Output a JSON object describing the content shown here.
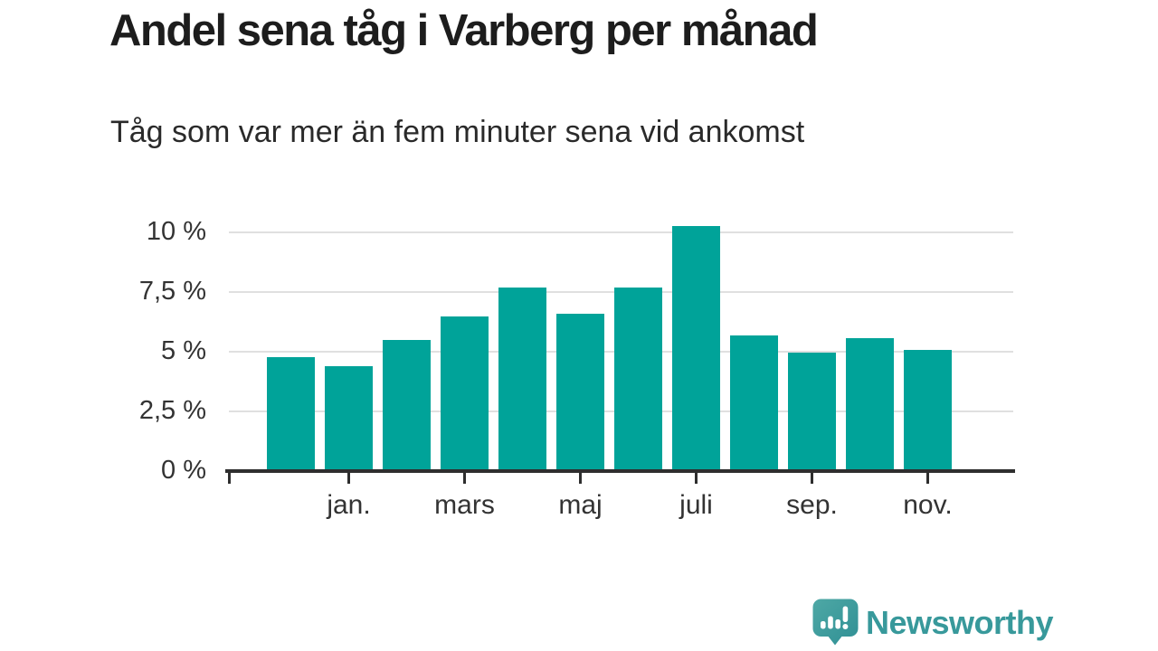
{
  "header": {
    "title": "Andel sena tåg i Varberg per månad",
    "subtitle": "Tåg som var mer än fem minuter sena vid ankomst"
  },
  "chart_data": {
    "type": "bar",
    "title": "Andel sena tåg i Varberg per månad",
    "subtitle": "Tåg som var mer än fem minuter sena vid ankomst",
    "unit": "%",
    "values": [
      4.7,
      4.3,
      5.4,
      6.4,
      7.6,
      6.5,
      7.6,
      10.2,
      5.6,
      4.9,
      5.5,
      5.0
    ],
    "bar_count": 12,
    "x_tick_labels": [
      "jan.",
      "mars",
      "maj",
      "juli",
      "sep.",
      "nov."
    ],
    "x_tick_bar_indexes": [
      1,
      3,
      5,
      7,
      9,
      11
    ],
    "y_ticks": [
      {
        "value": 0,
        "label": "0 %"
      },
      {
        "value": 2.5,
        "label": "2,5 %"
      },
      {
        "value": 5,
        "label": "5 %"
      },
      {
        "value": 7.5,
        "label": "7,5 %"
      },
      {
        "value": 10,
        "label": "10 %"
      }
    ],
    "ylim": [
      0,
      10.5
    ],
    "grid": true,
    "legend_position": "none",
    "bar_color": "#00a399"
  },
  "colors": {
    "bar": "#00a399",
    "axis": "#2e2e2e",
    "gridline": "#e0e0e0",
    "tick_text": "#333333",
    "title_text": "#1d1d1d",
    "brand_teal": "#38999b"
  },
  "footer": {
    "brand_name": "Newsworthy",
    "logo_icon": "bar-chart-exclamation-speech-bubble"
  }
}
